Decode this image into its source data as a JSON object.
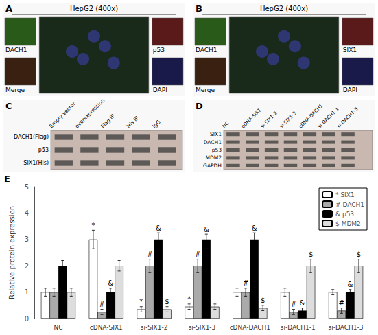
{
  "chart_data": [
    {
      "type": "image",
      "title": "A",
      "subtitle": "HepG2 (400x)",
      "annotations": [
        "DACH1",
        "p53",
        "Merge",
        "DAPI"
      ]
    },
    {
      "type": "image",
      "title": "B",
      "subtitle": "HepG2 (400x)",
      "annotations": [
        "DACH1",
        "SIX1",
        "Merge",
        "DAPI"
      ]
    },
    {
      "type": "blot",
      "title": "C",
      "categories": [
        "Empty vector",
        "overexpression",
        "Flag IP",
        "His IP",
        "IgG"
      ],
      "annotations": [
        "DACH1(Flag)",
        "p53",
        "SIX1(His)"
      ]
    },
    {
      "type": "blot",
      "title": "D",
      "categories": [
        "NC",
        "cDNA-SIX1",
        "si-SIX1-2",
        "si-SIX1-3",
        "cDNA-DACH1",
        "si-DACH1-1",
        "si-DACH1-3"
      ],
      "annotations": [
        "SIX1",
        "DACH1",
        "p53",
        "MDM2",
        "GAPDH"
      ]
    },
    {
      "type": "bar",
      "title": "E",
      "categories": [
        "NC",
        "cDNA-SIX1",
        "si-SIX1-2",
        "si-SIX1-3",
        "cDNA-DACH1",
        "si-DACH1-1",
        "si-DACH1-3"
      ],
      "ylabel": "Relative protein expression",
      "ylim": [
        0,
        5
      ],
      "yticks": [
        0,
        1,
        2,
        3,
        4,
        5
      ],
      "grid": false,
      "legend": "upper right",
      "series": [
        {
          "name": "* SIX1",
          "color": "#ffffff",
          "values": [
            1.0,
            3.0,
            0.35,
            0.45,
            1.0,
            1.0,
            1.0
          ],
          "errors": [
            0.15,
            0.35,
            0.1,
            0.1,
            0.15,
            0.15,
            0.1
          ],
          "value_labels": [
            null,
            "*",
            "*",
            "*",
            null,
            null,
            null
          ]
        },
        {
          "name": "# DACH1",
          "color": "#aaaaaa",
          "values": [
            1.0,
            0.25,
            2.0,
            2.0,
            1.0,
            0.25,
            0.3
          ],
          "errors": [
            0.15,
            0.1,
            0.25,
            0.25,
            0.15,
            0.1,
            0.1
          ],
          "value_labels": [
            null,
            "#",
            "#",
            "#",
            "#",
            "#",
            "#"
          ]
        },
        {
          "name": "& p53",
          "color": "#000000",
          "values": [
            2.0,
            1.0,
            3.0,
            3.0,
            3.0,
            0.3,
            1.0
          ],
          "errors": [
            0.2,
            0.15,
            0.25,
            0.2,
            0.25,
            0.1,
            0.1
          ],
          "value_labels": [
            null,
            "&",
            "&",
            "&",
            "&",
            "&",
            "&"
          ]
        },
        {
          "name": "$ MDM2",
          "color": "#dddddd",
          "values": [
            1.0,
            2.0,
            0.35,
            0.45,
            0.4,
            2.0,
            2.0
          ],
          "errors": [
            0.15,
            0.2,
            0.1,
            0.1,
            0.1,
            0.25,
            0.25
          ],
          "value_labels": [
            null,
            null,
            "$",
            null,
            "$",
            "$",
            "$"
          ]
        }
      ]
    }
  ]
}
